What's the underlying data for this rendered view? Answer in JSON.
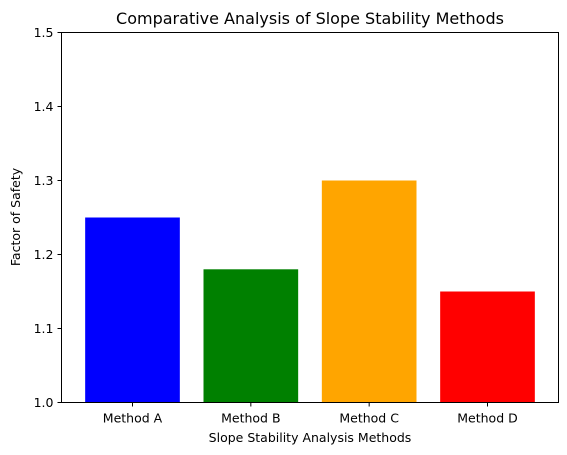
{
  "chart_data": {
    "type": "bar",
    "title": "Comparative Analysis of Slope Stability Methods",
    "xlabel": "Slope Stability Analysis Methods",
    "ylabel": "Factor of Safety",
    "categories": [
      "Method A",
      "Method B",
      "Method C",
      "Method D"
    ],
    "values": [
      1.25,
      1.18,
      1.3,
      1.15
    ],
    "colors": [
      "#0000ff",
      "#008000",
      "#ffa500",
      "#ff0000"
    ],
    "ylim": [
      1.0,
      1.5
    ],
    "yticks": [
      "1.0",
      "1.1",
      "1.2",
      "1.3",
      "1.4",
      "1.5"
    ],
    "grid": false,
    "legend": "none"
  }
}
